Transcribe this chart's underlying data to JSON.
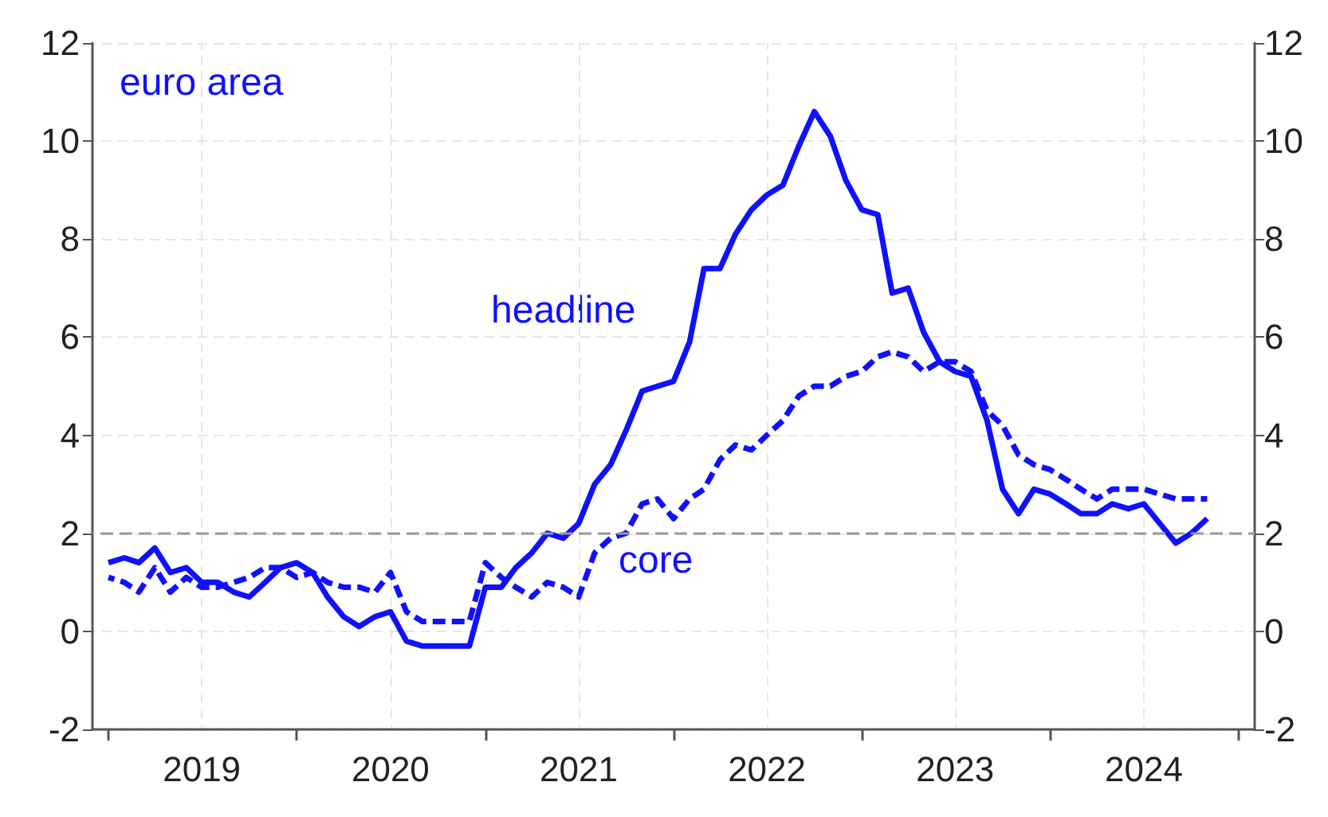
{
  "chart_data": {
    "type": "line",
    "annotations": [
      "euro area",
      "headline",
      "core"
    ],
    "x": [
      "2019-01",
      "2019-02",
      "2019-03",
      "2019-04",
      "2019-05",
      "2019-06",
      "2019-07",
      "2019-08",
      "2019-09",
      "2019-10",
      "2019-11",
      "2019-12",
      "2020-01",
      "2020-02",
      "2020-03",
      "2020-04",
      "2020-05",
      "2020-06",
      "2020-07",
      "2020-08",
      "2020-09",
      "2020-10",
      "2020-11",
      "2020-12",
      "2021-01",
      "2021-02",
      "2021-03",
      "2021-04",
      "2021-05",
      "2021-06",
      "2021-07",
      "2021-08",
      "2021-09",
      "2021-10",
      "2021-11",
      "2021-12",
      "2022-01",
      "2022-02",
      "2022-03",
      "2022-04",
      "2022-05",
      "2022-06",
      "2022-07",
      "2022-08",
      "2022-09",
      "2022-10",
      "2022-11",
      "2022-12",
      "2023-01",
      "2023-02",
      "2023-03",
      "2023-04",
      "2023-05",
      "2023-06",
      "2023-07",
      "2023-08",
      "2023-09",
      "2023-10",
      "2023-11",
      "2023-12",
      "2024-01",
      "2024-02",
      "2024-03",
      "2024-04",
      "2024-05",
      "2024-06",
      "2024-07",
      "2024-08",
      "2024-09",
      "2024-10",
      "2024-11"
    ],
    "series": [
      {
        "color": "#1010ff",
        "line_style": "solid",
        "values": [
          1.4,
          1.5,
          1.4,
          1.7,
          1.2,
          1.3,
          1.0,
          1.0,
          0.8,
          0.7,
          1.0,
          1.3,
          1.4,
          1.2,
          0.7,
          0.3,
          0.1,
          0.3,
          0.4,
          -0.2,
          -0.3,
          -0.3,
          -0.3,
          -0.3,
          0.9,
          0.9,
          1.3,
          1.6,
          2.0,
          1.9,
          2.2,
          3.0,
          3.4,
          4.1,
          4.9,
          5.0,
          5.1,
          5.9,
          7.4,
          7.4,
          8.1,
          8.6,
          8.9,
          9.1,
          9.9,
          10.6,
          10.1,
          9.2,
          8.6,
          8.5,
          6.9,
          7.0,
          6.1,
          5.5,
          5.3,
          5.2,
          4.3,
          2.9,
          2.4,
          2.9,
          2.8,
          2.6,
          2.4,
          2.4,
          2.6,
          2.5,
          2.6,
          2.2,
          1.8,
          2.0,
          2.3
        ]
      },
      {
        "color": "#1010ff",
        "line_style": "dashed",
        "values": [
          1.1,
          1.0,
          0.8,
          1.3,
          0.8,
          1.1,
          0.9,
          0.9,
          1.0,
          1.1,
          1.3,
          1.3,
          1.1,
          1.2,
          1.0,
          0.9,
          0.9,
          0.8,
          1.2,
          0.4,
          0.2,
          0.2,
          0.2,
          0.2,
          1.4,
          1.1,
          0.9,
          0.7,
          1.0,
          0.9,
          0.7,
          1.6,
          1.9,
          2.0,
          2.6,
          2.7,
          2.3,
          2.7,
          2.9,
          3.5,
          3.8,
          3.7,
          4.0,
          4.3,
          4.8,
          5.0,
          5.0,
          5.2,
          5.3,
          5.6,
          5.7,
          5.6,
          5.3,
          5.5,
          5.5,
          5.3,
          4.5,
          4.2,
          3.6,
          3.4,
          3.3,
          3.1,
          2.9,
          2.7,
          2.9,
          2.9,
          2.9,
          2.8,
          2.7,
          2.7,
          2.7
        ]
      }
    ],
    "xlim": [
      "2018-12",
      "2025-02"
    ],
    "xticks": [
      {
        "value": "2019-01",
        "label": null
      },
      {
        "value": "2019-07",
        "label": "2019"
      },
      {
        "value": "2020-01",
        "label": null
      },
      {
        "value": "2020-07",
        "label": "2020"
      },
      {
        "value": "2021-01",
        "label": null
      },
      {
        "value": "2021-07",
        "label": "2021"
      },
      {
        "value": "2022-01",
        "label": null
      },
      {
        "value": "2022-07",
        "label": "2022"
      },
      {
        "value": "2023-01",
        "label": null
      },
      {
        "value": "2023-07",
        "label": "2023"
      },
      {
        "value": "2024-01",
        "label": null
      },
      {
        "value": "2024-07",
        "label": "2024"
      },
      {
        "value": "2025-01",
        "label": null
      }
    ],
    "ylim": [
      -2,
      12
    ],
    "yticks": [
      -2,
      0,
      2,
      4,
      6,
      8,
      10,
      12
    ],
    "y2lim": [
      -2,
      12
    ],
    "y2ticks": [
      -2,
      0,
      2,
      4,
      6,
      8,
      10,
      12
    ],
    "ref_lines": [
      {
        "axis": "y",
        "value": 2,
        "color": "#999999",
        "line_style": "dashed"
      }
    ],
    "grid": true,
    "marker": "none"
  }
}
